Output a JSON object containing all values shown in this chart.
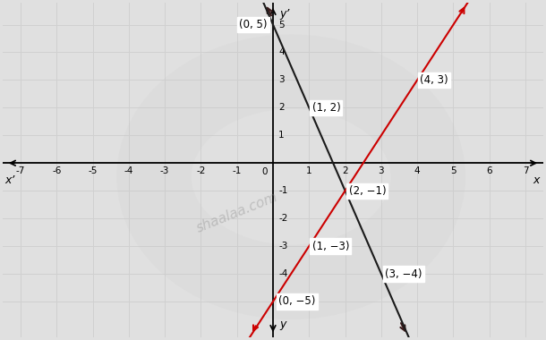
{
  "xlim": [
    -7.5,
    7.5
  ],
  "ylim": [
    -6.3,
    5.8
  ],
  "xticks": [
    -7,
    -6,
    -5,
    -4,
    -3,
    -2,
    -1,
    1,
    2,
    3,
    4,
    5,
    6,
    7
  ],
  "yticks": [
    -5,
    -4,
    -3,
    -2,
    -1,
    1,
    2,
    3,
    4,
    5
  ],
  "xlabel_right": "x",
  "xlabel_left": "x’",
  "ylabel_top": "y’",
  "ylabel_bottom": "y",
  "line1_color": "#1a1a1a",
  "line1_slope": -3,
  "line1_intercept": 5,
  "line2_color": "#cc0000",
  "line2_slope": 2,
  "line2_intercept": -5,
  "grid_color": "#d0d0d0",
  "bg_color": "#e0e0e0",
  "watermark": "shaalaa.com",
  "label_fontsize": 8.5
}
